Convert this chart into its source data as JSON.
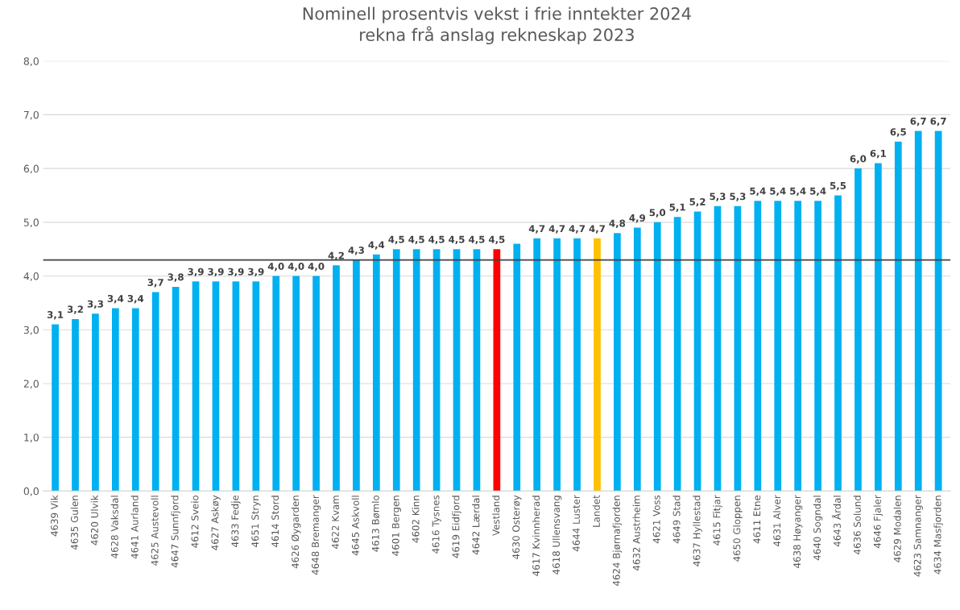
{
  "chart_data": {
    "type": "bar",
    "title": "Nominell prosentvis vekst i frie inntekter 2024\nrekna frå anslag rekneskap 2023",
    "categories": [
      "4639 Vik",
      "4635 Gulen",
      "4620 Ulvik",
      "4628 Vaksdal",
      "4641 Aurland",
      "4625 Austevoll",
      "4647 Sunnfjord",
      "4612 Sveio",
      "4627 Askøy",
      "4633 Fedje",
      "4651 Stryn",
      "4614 Stord",
      "4626 Øygarden",
      "4648 Bremanger",
      "4622 Kvam",
      "4645 Askvoll",
      "4613 Bømlo",
      "4601 Bergen",
      "4602 Kinn",
      "4616 Tysnes",
      "4619 Eidfjord",
      "4642 Lærdal",
      "Vestland",
      "4630 Osterøy",
      "4617 Kvinnherad",
      "4618 Ullensvang",
      "4644 Luster",
      "Landet",
      "4624 Bjørnafjorden",
      "4632 Austrheim",
      "4621 Voss",
      "4649 Stad",
      "4637 Hyllestad",
      "4615 Fitjar",
      "4650 Gloppen",
      "4611 Etne",
      "4631 Alver",
      "4638 Høyanger",
      "4640 Sogndal",
      "4643 Årdal",
      "4636 Solund",
      "4646 Fjaler",
      "4629 Modalen",
      "4623 Samnanger",
      "4634 Masfjorden"
    ],
    "values": [
      3.1,
      3.2,
      3.3,
      3.4,
      3.4,
      3.7,
      3.8,
      3.9,
      3.9,
      3.9,
      3.9,
      4.0,
      4.0,
      4.0,
      4.2,
      4.3,
      4.4,
      4.5,
      4.5,
      4.5,
      4.5,
      4.5,
      4.5,
      4.6,
      4.7,
      4.7,
      4.7,
      4.7,
      4.8,
      4.9,
      5.0,
      5.1,
      5.2,
      5.3,
      5.3,
      5.4,
      5.4,
      5.4,
      5.4,
      5.5,
      6.0,
      6.1,
      6.5,
      6.7,
      6.7
    ],
    "value_labels": [
      "3,1",
      "3,2",
      "3,3",
      "3,4",
      "3,4",
      "3,7",
      "3,8",
      "3,9",
      "3,9",
      "3,9",
      "3,9",
      "4,0",
      "4,0",
      "4,0",
      "4,2",
      "4,3",
      "4,4",
      "4,5",
      "4,5",
      "4,5",
      "4,5",
      "4,5",
      "4,5",
      null,
      "4,7",
      "4,7",
      "4,7",
      "4,7",
      "4,8",
      "4,9",
      "5,0",
      "5,1",
      "5,2",
      "5,3",
      "5,3",
      "5,4",
      "5,4",
      "5,4",
      "5,4",
      "5,5",
      "6,0",
      "6,1",
      "6,5",
      "6,7",
      "6,7"
    ],
    "colors": [
      "#00b0f0",
      "#00b0f0",
      "#00b0f0",
      "#00b0f0",
      "#00b0f0",
      "#00b0f0",
      "#00b0f0",
      "#00b0f0",
      "#00b0f0",
      "#00b0f0",
      "#00b0f0",
      "#00b0f0",
      "#00b0f0",
      "#00b0f0",
      "#00b0f0",
      "#00b0f0",
      "#00b0f0",
      "#00b0f0",
      "#00b0f0",
      "#00b0f0",
      "#00b0f0",
      "#00b0f0",
      "#ff0000",
      "#00b0f0",
      "#00b0f0",
      "#00b0f0",
      "#00b0f0",
      "#ffc000",
      "#00b0f0",
      "#00b0f0",
      "#00b0f0",
      "#00b0f0",
      "#00b0f0",
      "#00b0f0",
      "#00b0f0",
      "#00b0f0",
      "#00b0f0",
      "#00b0f0",
      "#00b0f0",
      "#00b0f0",
      "#00b0f0",
      "#00b0f0",
      "#00b0f0",
      "#00b0f0",
      "#00b0f0"
    ],
    "ylim": [
      0,
      8
    ],
    "yticks": [
      {
        "value": 0,
        "label": "0,0"
      },
      {
        "value": 1,
        "label": "1,0"
      },
      {
        "value": 2,
        "label": "2,0"
      },
      {
        "value": 3,
        "label": "3,0"
      },
      {
        "value": 4,
        "label": "4,0"
      },
      {
        "value": 5,
        "label": "5,0"
      },
      {
        "value": 6,
        "label": "6,0"
      },
      {
        "value": 7,
        "label": "7,0"
      },
      {
        "value": 8,
        "label": "8,0"
      }
    ],
    "ref_lines": [
      {
        "axis": "y",
        "value": 4.3,
        "color": "#404040"
      }
    ],
    "grid": "y",
    "legend": false
  }
}
